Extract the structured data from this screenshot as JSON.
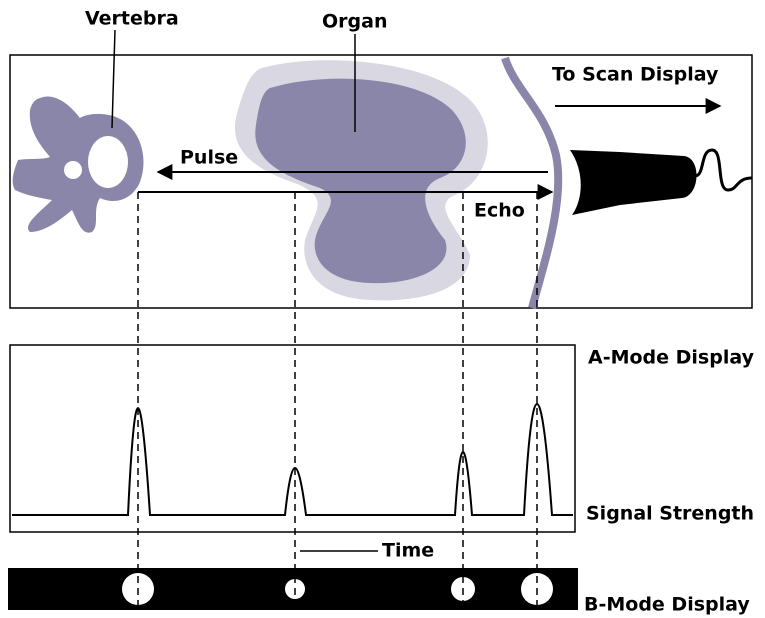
{
  "labels": {
    "vertebra": "Vertebra",
    "organ": "Organ",
    "to_scan": "To Scan Display",
    "pulse": "Pulse",
    "echo": "Echo",
    "a_mode": "A-Mode Display",
    "signal": "Signal Strength",
    "time": "Time",
    "b_mode": "B-Mode Display"
  }
}
